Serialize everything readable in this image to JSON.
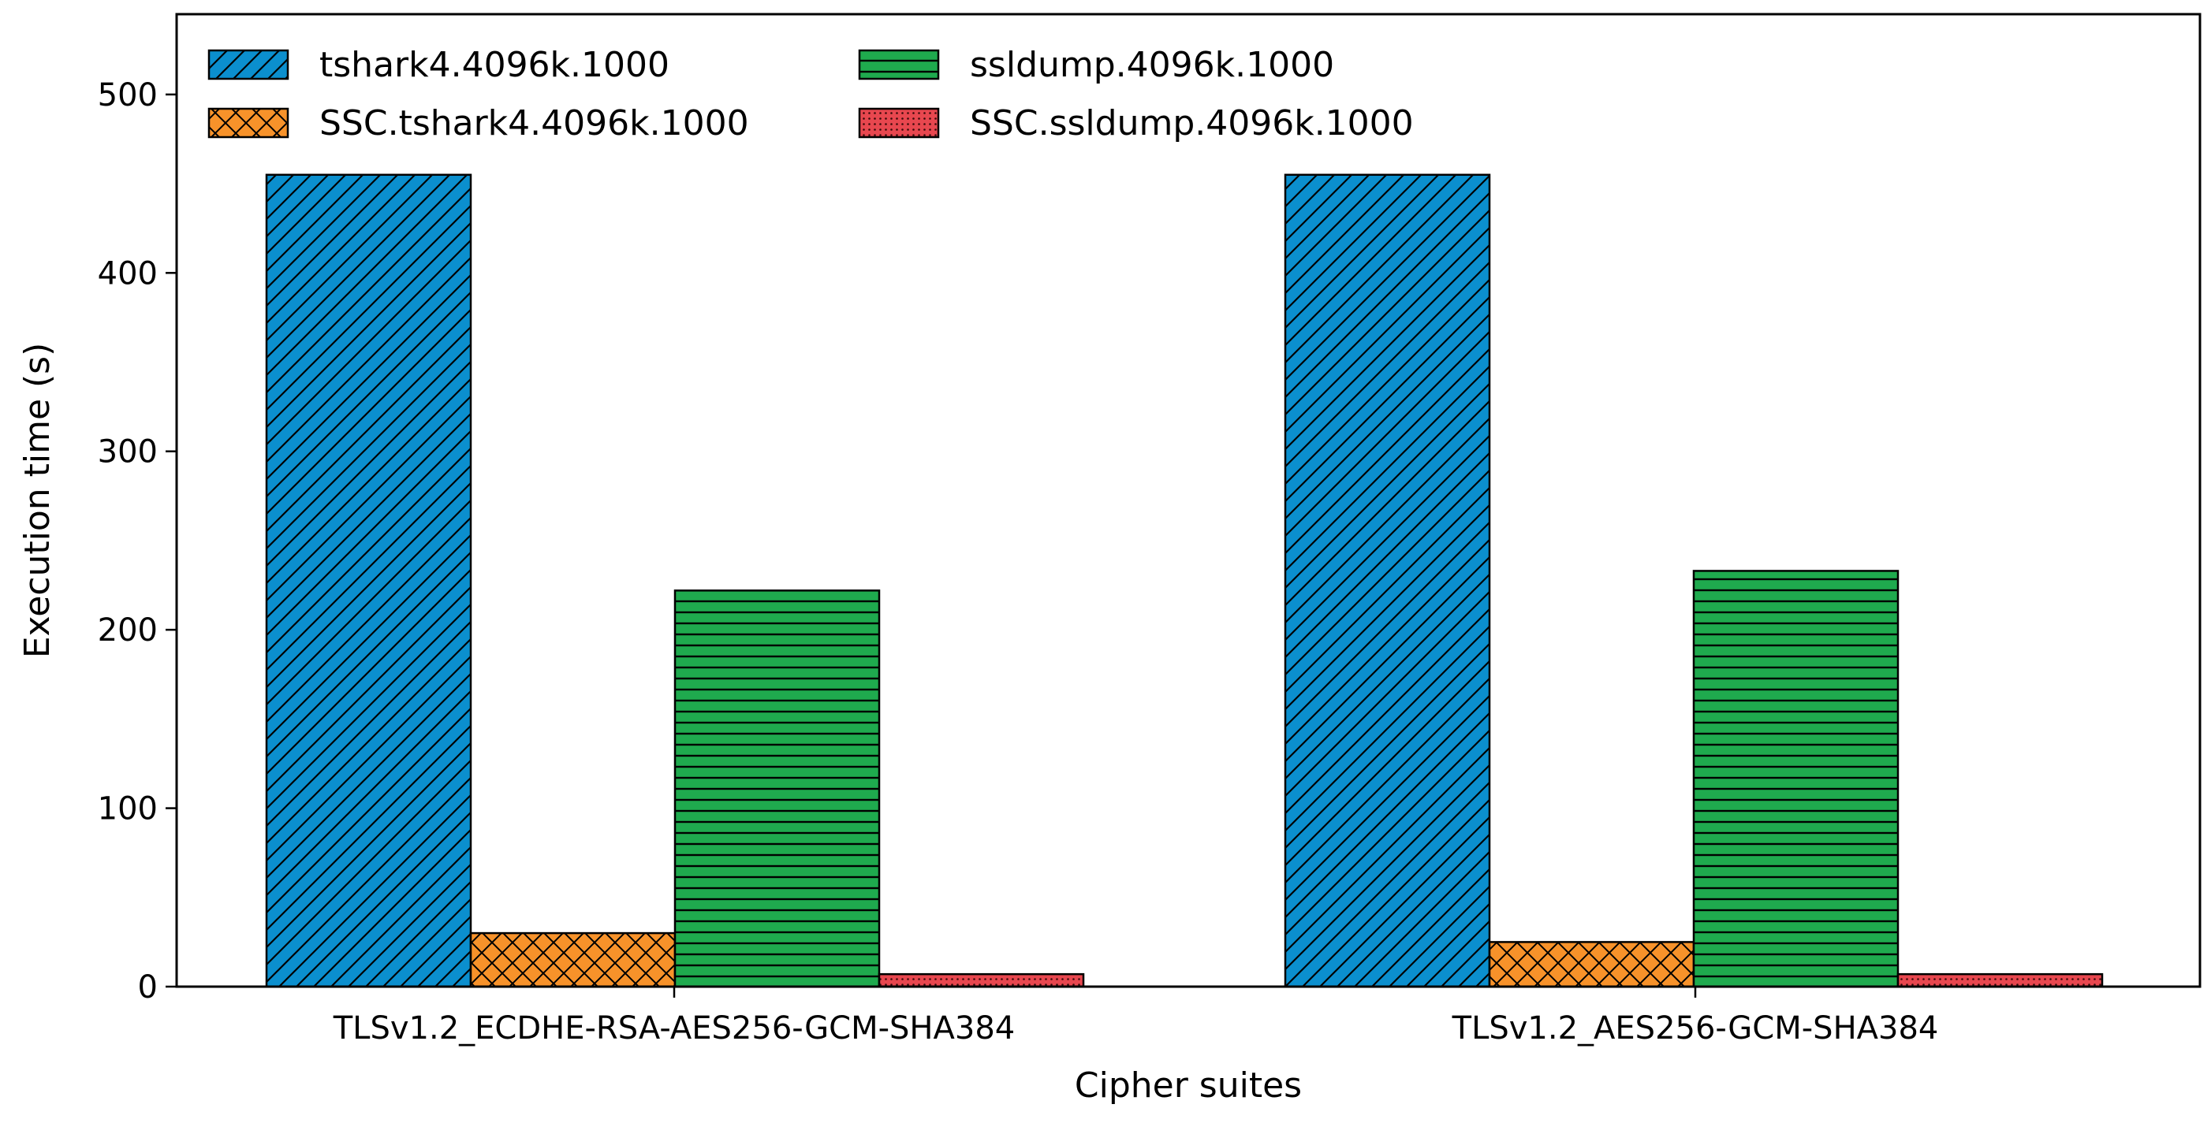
{
  "chart_data": {
    "type": "bar",
    "title": "",
    "xlabel": "Cipher suites",
    "ylabel": "Execution time (s)",
    "ylim": [
      0,
      545
    ],
    "yticks": [
      0,
      100,
      200,
      300,
      400,
      500
    ],
    "grid": false,
    "legend_position": "top-left",
    "categories": [
      "TLSv1.2_ECDHE-RSA-AES256-GCM-SHA384",
      "TLSv1.2_AES256-GCM-SHA384"
    ],
    "series": [
      {
        "name": "tshark4.4096k.1000",
        "values": [
          455,
          455
        ],
        "color": "#0b8fce",
        "pattern": "diagonal-hatch"
      },
      {
        "name": "SSC.tshark4.4096k.1000",
        "values": [
          30,
          25
        ],
        "color": "#f7922a",
        "pattern": "cross-hatch"
      },
      {
        "name": "ssldump.4096k.1000",
        "values": [
          222,
          233
        ],
        "color": "#1faa4e",
        "pattern": "horizontal-hatch"
      },
      {
        "name": "SSC.ssldump.4096k.1000",
        "values": [
          7,
          7
        ],
        "color": "#e8474f",
        "pattern": "dots"
      }
    ]
  }
}
